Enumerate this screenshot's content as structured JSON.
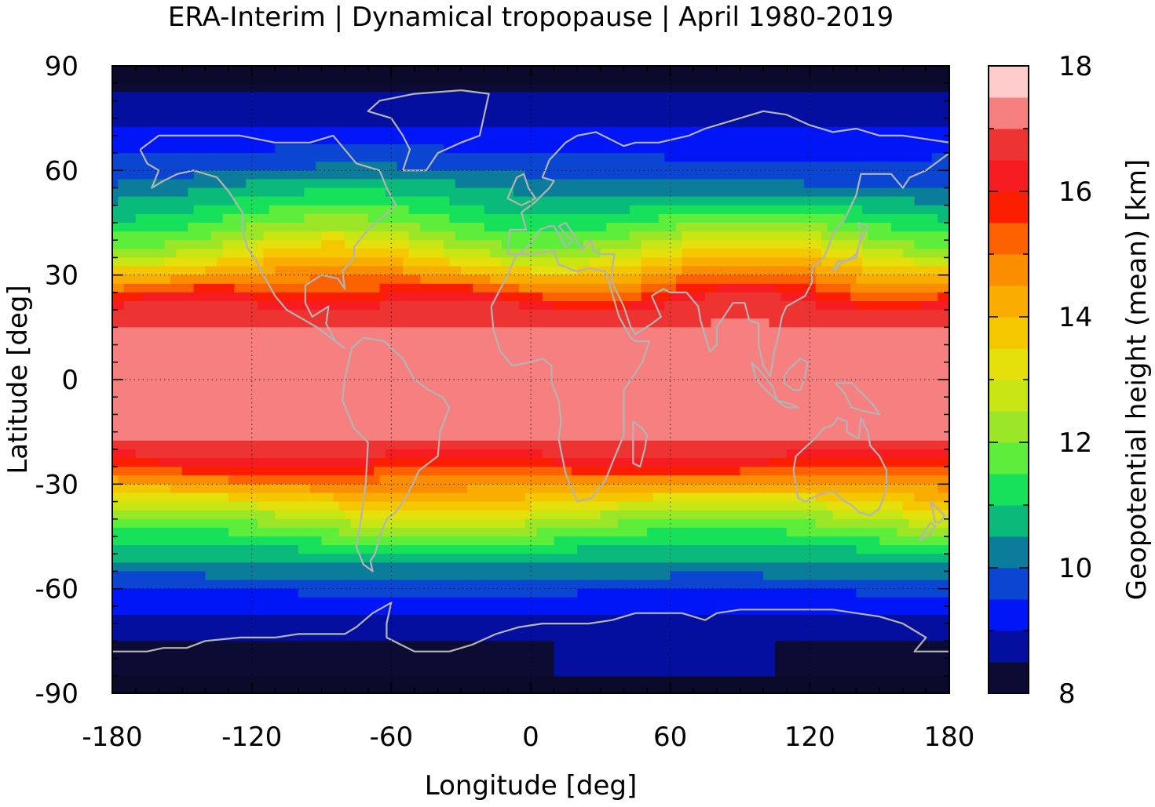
{
  "title": "ERA-Interim | Dynamical tropopause | April 1980-2019",
  "map": {
    "projection": "equirectangular",
    "lon_range": [
      -180,
      180
    ],
    "lat_range": [
      -90,
      90
    ],
    "xlabel": "Longitude [deg]",
    "ylabel": "Latitude [deg]",
    "x_ticks": [
      -180,
      -120,
      -60,
      0,
      60,
      120,
      180
    ],
    "y_ticks": [
      90,
      60,
      30,
      0,
      -30,
      -60,
      -90
    ],
    "grid": "dotted",
    "coastline_color": "#b4b4b4",
    "missing_color": "#0a0a2a"
  },
  "colorbar": {
    "label": "Geopotential height (mean) [km]",
    "range": [
      8,
      18
    ],
    "step": 0.5,
    "ticks": [
      18,
      16,
      14,
      12,
      10,
      8
    ],
    "colors": [
      "#0b0b33",
      "#050f9f",
      "#0016f7",
      "#0a46d2",
      "#0b7d9a",
      "#0aba7a",
      "#17e15a",
      "#5ded3b",
      "#9ae627",
      "#c8e514",
      "#e5df0b",
      "#f4c700",
      "#f8ad00",
      "#fa8d00",
      "#fd6200",
      "#fb1e00",
      "#f61c22",
      "#ee3333",
      "#f67f7f",
      "#ffcccc"
    ]
  },
  "chart_data": {
    "type": "heatmap",
    "variable": "Geopotential height (mean)",
    "units": "km",
    "period": "April 1980-2019",
    "zonal_structure_km_by_latitude": [
      {
        "lat": 90,
        "value": 8.0
      },
      {
        "lat": 80,
        "value": 8.6
      },
      {
        "lat": 70,
        "value": 9.2
      },
      {
        "lat": 60,
        "value": 9.8
      },
      {
        "lat": 50,
        "value": 11.0
      },
      {
        "lat": 40,
        "value": 12.3
      },
      {
        "lat": 30,
        "value": 14.4
      },
      {
        "lat": 20,
        "value": 16.8
      },
      {
        "lat": 10,
        "value": 17.2
      },
      {
        "lat": 0,
        "value": 17.3
      },
      {
        "lat": -10,
        "value": 17.3
      },
      {
        "lat": -20,
        "value": 16.9
      },
      {
        "lat": -30,
        "value": 14.6
      },
      {
        "lat": -40,
        "value": 12.4
      },
      {
        "lat": -50,
        "value": 10.8
      },
      {
        "lat": -60,
        "value": 9.6
      },
      {
        "lat": -70,
        "value": 8.8
      },
      {
        "lat": -80,
        "value": 8.3
      },
      {
        "lat": -90,
        "value": 8.0
      }
    ],
    "colorbar_ticks": [
      18,
      16,
      14,
      12,
      10,
      8
    ]
  }
}
